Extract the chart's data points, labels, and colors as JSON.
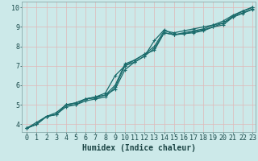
{
  "title": "",
  "xlabel": "Humidex (Indice chaleur)",
  "ylabel": "",
  "xlim": [
    -0.5,
    23.3
  ],
  "ylim": [
    3.6,
    10.3
  ],
  "xticks": [
    0,
    1,
    2,
    3,
    4,
    5,
    6,
    7,
    8,
    9,
    10,
    11,
    12,
    13,
    14,
    15,
    16,
    17,
    18,
    19,
    20,
    21,
    22,
    23
  ],
  "yticks": [
    4,
    5,
    6,
    7,
    8,
    9,
    10
  ],
  "bg_color": "#cce9e9",
  "grid_color": "#e0b8b8",
  "line_color": "#1a6b6b",
  "lines": [
    [
      3.8,
      4.0,
      4.4,
      4.5,
      4.9,
      5.0,
      5.2,
      5.3,
      5.4,
      5.9,
      7.0,
      7.2,
      7.5,
      8.3,
      8.85,
      8.6,
      8.65,
      8.7,
      8.8,
      9.0,
      9.1,
      9.5,
      9.7,
      9.9
    ],
    [
      3.8,
      4.1,
      4.4,
      4.5,
      5.0,
      5.1,
      5.3,
      5.4,
      5.5,
      6.0,
      7.1,
      7.3,
      7.6,
      7.8,
      8.7,
      8.6,
      8.7,
      8.8,
      8.9,
      9.1,
      9.2,
      9.55,
      9.8,
      10.0
    ],
    [
      3.8,
      4.0,
      4.4,
      4.6,
      5.0,
      5.1,
      5.3,
      5.4,
      5.6,
      6.5,
      7.0,
      7.3,
      7.6,
      8.0,
      8.8,
      8.7,
      8.8,
      8.9,
      9.0,
      9.1,
      9.3,
      9.6,
      9.82,
      10.02
    ],
    [
      3.8,
      4.0,
      4.4,
      4.5,
      5.0,
      5.0,
      5.3,
      5.35,
      5.5,
      5.8,
      6.8,
      7.2,
      7.5,
      7.9,
      8.7,
      8.6,
      8.65,
      8.75,
      8.85,
      9.0,
      9.2,
      9.5,
      9.72,
      9.92
    ]
  ],
  "marker_size": 3.0,
  "line_width": 0.9,
  "font_size_xlabel": 7,
  "font_size_ticks": 6
}
